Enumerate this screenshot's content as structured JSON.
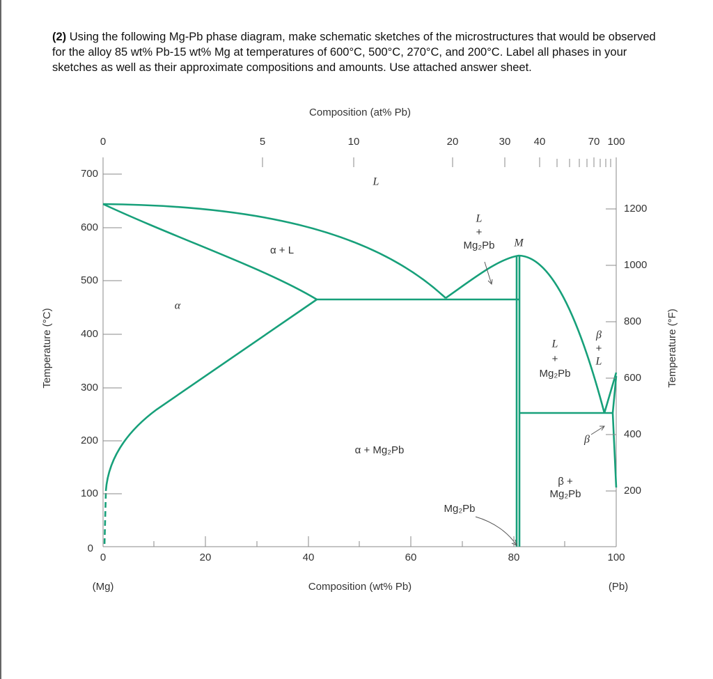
{
  "question": {
    "number": "(2)",
    "text": "Using the following Mg-Pb phase diagram, make schematic sketches of the microstructures that would be observed for the alloy 85 wt% Pb-15 wt% Mg at temperatures of 600°C, 500°C, 270°C, and 200°C. Label all phases in your sketches as well as their approximate compositions and amounts. Use attached answer sheet."
  },
  "diagram": {
    "top_axis": {
      "title": "Composition (at% Pb)",
      "ticks": [
        "0",
        "5",
        "10",
        "20",
        "30",
        "40",
        "70",
        "100"
      ]
    },
    "bottom_axis": {
      "title": "Composition (wt% Pb)",
      "ticks": [
        "0",
        "20",
        "40",
        "60",
        "80",
        "100"
      ],
      "left_end": "(Mg)",
      "right_end": "(Pb)"
    },
    "left_axis": {
      "title": "Temperature (°C)",
      "ticks": [
        "0",
        "100",
        "200",
        "300",
        "400",
        "500",
        "600",
        "700"
      ]
    },
    "right_axis": {
      "title": "Temperature (°F)",
      "ticks": [
        "200",
        "400",
        "600",
        "800",
        "1000",
        "1200"
      ]
    },
    "labels": [
      [
        "L"
      ],
      [
        "L",
        "+",
        "Mg₂Pb"
      ],
      [
        "M"
      ],
      [
        "α + L"
      ],
      [
        "α"
      ],
      [
        "L",
        "+",
        "Mg₂Pb"
      ],
      [
        "β",
        "+",
        "L"
      ],
      [
        "α + Mg₂Pb"
      ],
      [
        "β +",
        "Mg₂Pb"
      ],
      [
        "Mg₂Pb"
      ],
      [
        "β"
      ]
    ]
  }
}
